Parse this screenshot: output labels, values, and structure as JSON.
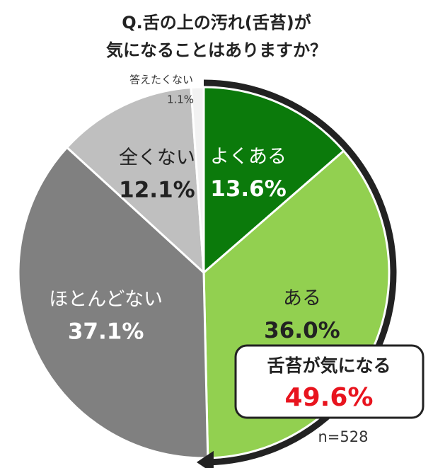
{
  "chart_data": {
    "type": "pie",
    "title": [
      "Q.舌の上の汚れ(舌苔)が",
      "気になることはありますか？"
    ],
    "categories": [
      "よくある",
      "ある",
      "ほとんどない",
      "全くない",
      "答えたくない"
    ],
    "values": [
      13.6,
      36.0,
      37.1,
      12.1,
      1.1
    ],
    "value_labels": [
      "13.6%",
      "36.0%",
      "37.1%",
      "12.1%",
      "1.1%"
    ],
    "colors": [
      "#0b7a0b",
      "#92d050",
      "#808080",
      "#bfbfbf",
      "#f2f2f2"
    ],
    "annotation": {
      "text": "舌苔が気になる",
      "value": 49.6,
      "label": "49.6%",
      "color": "#e8141e"
    },
    "note": "n=528"
  }
}
